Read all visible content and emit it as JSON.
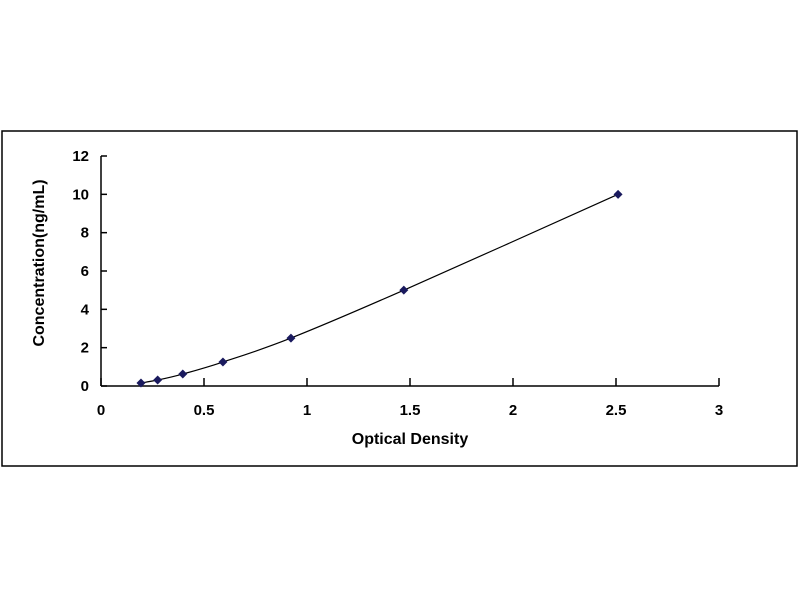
{
  "chart_data": {
    "type": "scatter",
    "title": "",
    "xlabel": "Optical Density",
    "ylabel": "Concentration(ng/mL)",
    "xlim": [
      0,
      3
    ],
    "ylim": [
      0,
      12
    ],
    "x_ticks": [
      "0",
      "0.5",
      "1",
      "1.5",
      "2",
      "2.5",
      "3"
    ],
    "y_ticks": [
      "0",
      "2",
      "4",
      "6",
      "8",
      "10",
      "12"
    ],
    "grid": false,
    "legend": "none",
    "trendline": "smooth curve",
    "marker": "diamond",
    "colors": {
      "marker": "#1a1a5e",
      "line": "#000000",
      "frame": "#000000"
    },
    "series": [
      {
        "x": [
          0.194,
          0.275,
          0.397,
          0.592,
          0.922,
          1.47,
          2.51
        ],
        "y": [
          0.156,
          0.312,
          0.625,
          1.25,
          2.5,
          5,
          10
        ]
      }
    ]
  }
}
